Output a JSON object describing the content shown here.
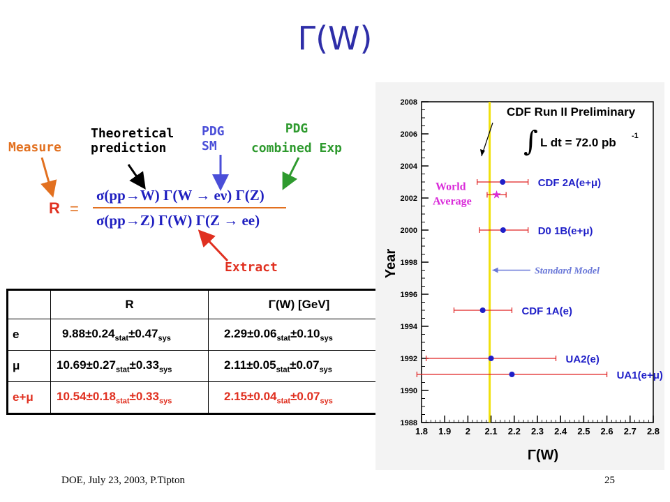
{
  "slide": {
    "title": "Γ(W)",
    "footer_left": "DOE, July 23, 2003,  P.Tipton",
    "page_number": "25"
  },
  "annotations": {
    "measure": "Measure",
    "theoretical_line1": "Theoretical",
    "theoretical_line2": "prediction",
    "pdg_sm_line1": "PDG",
    "pdg_sm_line2": "SM",
    "pdg_comb_line1": "PDG",
    "pdg_comb_line2": "combined Exp",
    "extract": "Extract"
  },
  "formula": {
    "lhs": "R",
    "equals": "=",
    "numerator": "σ(pp→W) Γ(W → eν) Γ(Z)",
    "denominator": "σ(pp→Z) Γ(W) Γ(Z → ee)"
  },
  "results_table": {
    "headers": [
      "",
      "R",
      "Γ(W) [GeV]"
    ],
    "rows": [
      {
        "channel": "e",
        "r_main": "9.88±0.24",
        "r_stat": "0.47",
        "g_main": "2.29±0.06",
        "g_stat": "0.10"
      },
      {
        "channel": "μ",
        "r_main": "10.69±0.27",
        "r_stat": "0.33",
        "g_main": "2.11±0.05",
        "g_stat": "0.07"
      },
      {
        "channel": "e+μ",
        "r_main": "10.54±0.18",
        "r_stat": "0.33",
        "g_main": "2.15±0.04",
        "g_stat": "0.07"
      }
    ],
    "stat_label": "stat",
    "sys_label": "sys",
    "pm": "±"
  },
  "chart_data": {
    "type": "scatter",
    "title": "CDF Run II Preliminary",
    "luminosity_label": "L dt = 72.0 pb",
    "luminosity_exp": "-1",
    "xlabel": "Γ(W)",
    "ylabel": "Year",
    "xlim": [
      1.8,
      2.8
    ],
    "ylim": [
      1988,
      2008
    ],
    "x_ticks": [
      "1.8",
      "1.9",
      "2",
      "2.1",
      "2.2",
      "2.3",
      "2.4",
      "2.5",
      "2.6",
      "2.7",
      "2.8"
    ],
    "y_ticks": [
      "1988",
      "1990",
      "1992",
      "1994",
      "1996",
      "1998",
      "2000",
      "2002",
      "2004",
      "2006",
      "2008"
    ],
    "standard_model": {
      "value": 2.094,
      "label": "Standard Model"
    },
    "points": [
      {
        "label": "CDF 2A(e+μ)",
        "year": 2003.0,
        "x": 2.15,
        "xlo": 2.04,
        "xhi": 2.26,
        "color": "#1f1fc8"
      },
      {
        "label": "World Average",
        "year": 2002.2,
        "x": 2.124,
        "xlo": 2.083,
        "xhi": 2.165,
        "color": "#d92ad9"
      },
      {
        "label": "D0 1B(e+μ)",
        "year": 2000.0,
        "x": 2.152,
        "xlo": 2.05,
        "xhi": 2.26,
        "color": "#1f1fc8"
      },
      {
        "label": "CDF 1A(e)",
        "year": 1995.0,
        "x": 2.064,
        "xlo": 1.94,
        "xhi": 2.19,
        "color": "#1f1fc8"
      },
      {
        "label": "UA2(e)",
        "year": 1992.0,
        "x": 2.1,
        "xlo": 1.82,
        "xhi": 2.38,
        "color": "#1f1fc8"
      },
      {
        "label": "UA1(e+μ)",
        "year": 1991.0,
        "x": 2.19,
        "xlo": 1.78,
        "xhi": 2.6,
        "color": "#1f1fc8"
      }
    ],
    "world_average_text": [
      "World",
      "Average"
    ],
    "colors": {
      "sm_line": "#f0e00a",
      "error_bars": "#e02020",
      "labels": "#1f1fc8",
      "wa_text": "#d92ad9",
      "sm_arrow": "#6a78d8",
      "background": "#ffffff"
    }
  }
}
